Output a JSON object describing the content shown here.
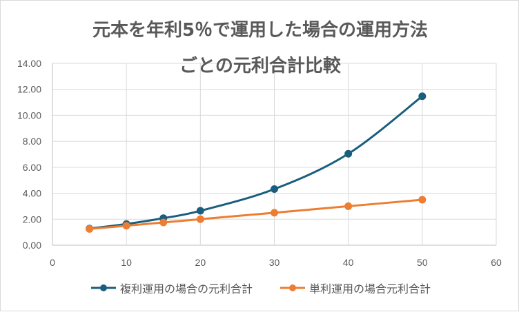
{
  "chart_data": {
    "type": "scatter-smooth-line",
    "title_lines": [
      "元本を年利5％で運用した場合の運用方法",
      "ごとの元利合計比較"
    ],
    "xlim": [
      0,
      60
    ],
    "ylim": [
      0,
      14
    ],
    "x_ticks": [
      "0",
      "10",
      "20",
      "30",
      "40",
      "50",
      "60"
    ],
    "y_ticks": [
      "0.00",
      "2.00",
      "4.00",
      "6.00",
      "8.00",
      "10.00",
      "12.00",
      "14.00"
    ],
    "grid": true,
    "legend_position": "bottom",
    "series": [
      {
        "name": "複利運用の場合の元利合計",
        "color": "#1a5e7e",
        "x": [
          5,
          10,
          15,
          20,
          30,
          40,
          50
        ],
        "y": [
          1.28,
          1.63,
          2.08,
          2.65,
          4.32,
          7.04,
          11.47
        ]
      },
      {
        "name": "単利運用の場合元利合計",
        "color": "#ed7d31",
        "x": [
          5,
          10,
          15,
          20,
          30,
          40,
          50
        ],
        "y": [
          1.25,
          1.5,
          1.75,
          2.0,
          2.5,
          3.0,
          3.5
        ]
      }
    ]
  }
}
